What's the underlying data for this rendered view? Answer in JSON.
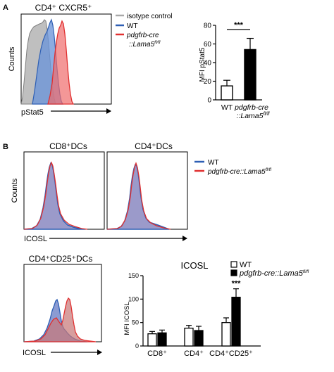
{
  "panels": {
    "A": {
      "letter": "A",
      "flow": {
        "title": "CD4⁺ CXCR5⁺",
        "ylabel": "Counts",
        "xlabel": "pStat5",
        "legend": [
          {
            "label": "isotype control",
            "color": "#a8a8a8"
          },
          {
            "label": "WT",
            "color": "#2e5fb4"
          },
          {
            "label": "pdgfrb-cre",
            "color": "#e03030"
          },
          {
            "label": "::Lama5",
            "color": "#e03030",
            "sup": "fl/fl"
          }
        ]
      }
    },
    "B": {
      "letter": "B",
      "flow_top": {
        "titles": [
          "CD8⁺DCs",
          "CD4⁺DCs"
        ],
        "ylabel": "Counts",
        "xlabel": "ICOSL",
        "legend": [
          {
            "label": "WT",
            "color": "#2e5fb4"
          },
          {
            "label": "pdgfrb-cre::Lama5",
            "sup": "fl/fl",
            "color": "#e03030"
          }
        ]
      },
      "flow_bottom": {
        "title": "CD4⁺CD25⁺DCs",
        "xlabel": "ICOSL"
      }
    }
  },
  "chart_data": [
    {
      "type": "bar",
      "panel": "A",
      "title": "",
      "ylabel": "MFI pStat5",
      "ylim": [
        0,
        80
      ],
      "yticks": [
        0,
        20,
        40,
        60,
        80
      ],
      "categories": [
        {
          "line1": "WT",
          "line2": ""
        },
        {
          "line1": "pdgfrb-cre",
          "line2": "::Lama5",
          "sup": "fl/fl"
        }
      ],
      "values": [
        15,
        54
      ],
      "errors": [
        6,
        12
      ],
      "fills": [
        "#ffffff",
        "#000000"
      ],
      "significance": "***"
    },
    {
      "type": "bar",
      "panel": "B",
      "title": "ICOSL",
      "ylabel": "MFI ICOSL",
      "ylim": [
        0,
        150
      ],
      "yticks": [
        0,
        50,
        100,
        150
      ],
      "categories": [
        "CD8⁺",
        "CD4⁺",
        "CD4⁺CD25⁺"
      ],
      "series": [
        {
          "name": "WT",
          "color": "#ffffff",
          "values": [
            26,
            38,
            50
          ],
          "errors": [
            5,
            6,
            10
          ]
        },
        {
          "name": "pdgfrb-cre::Lama5",
          "sup": "fl/fl",
          "color": "#000000",
          "values": [
            28,
            33,
            104
          ],
          "errors": [
            6,
            9,
            18
          ]
        }
      ],
      "annotations": [
        {
          "category": 2,
          "series": 1,
          "text": "***"
        }
      ],
      "legend_position": "top-right"
    }
  ]
}
